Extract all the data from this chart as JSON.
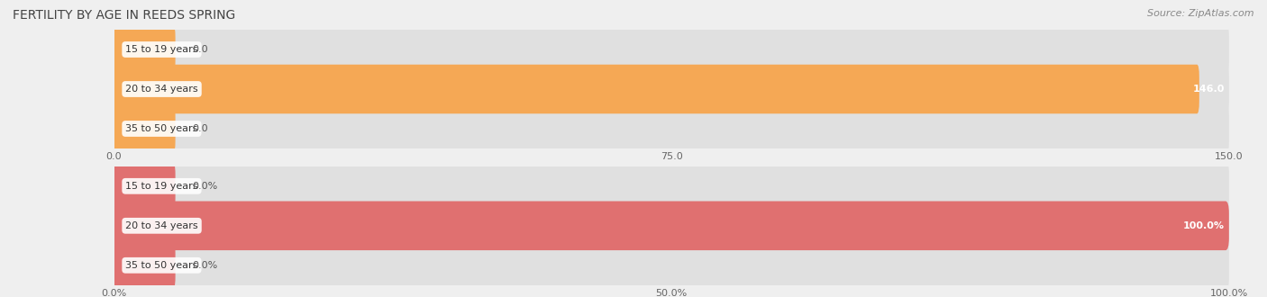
{
  "title": "FERTILITY BY AGE IN REEDS SPRING",
  "source": "Source: ZipAtlas.com",
  "top_chart": {
    "categories": [
      "15 to 19 years",
      "20 to 34 years",
      "35 to 50 years"
    ],
    "values": [
      0.0,
      146.0,
      0.0
    ],
    "bar_color": "#F5A855",
    "xlim": [
      0,
      150.0
    ],
    "xticks": [
      0.0,
      75.0,
      150.0
    ],
    "xtick_labels": [
      "0.0",
      "75.0",
      "150.0"
    ]
  },
  "bottom_chart": {
    "categories": [
      "15 to 19 years",
      "20 to 34 years",
      "35 to 50 years"
    ],
    "values": [
      0.0,
      100.0,
      0.0
    ],
    "bar_color": "#E07070",
    "xlim": [
      0,
      100.0
    ],
    "xticks": [
      0.0,
      50.0,
      100.0
    ],
    "xtick_labels": [
      "0.0%",
      "50.0%",
      "100.0%"
    ]
  },
  "background_color": "#efefef",
  "bar_bg_color": "#e0e0e0",
  "bar_height": 0.62,
  "title_fontsize": 10,
  "label_fontsize": 8,
  "tick_fontsize": 8,
  "source_fontsize": 8,
  "category_fontsize": 8
}
